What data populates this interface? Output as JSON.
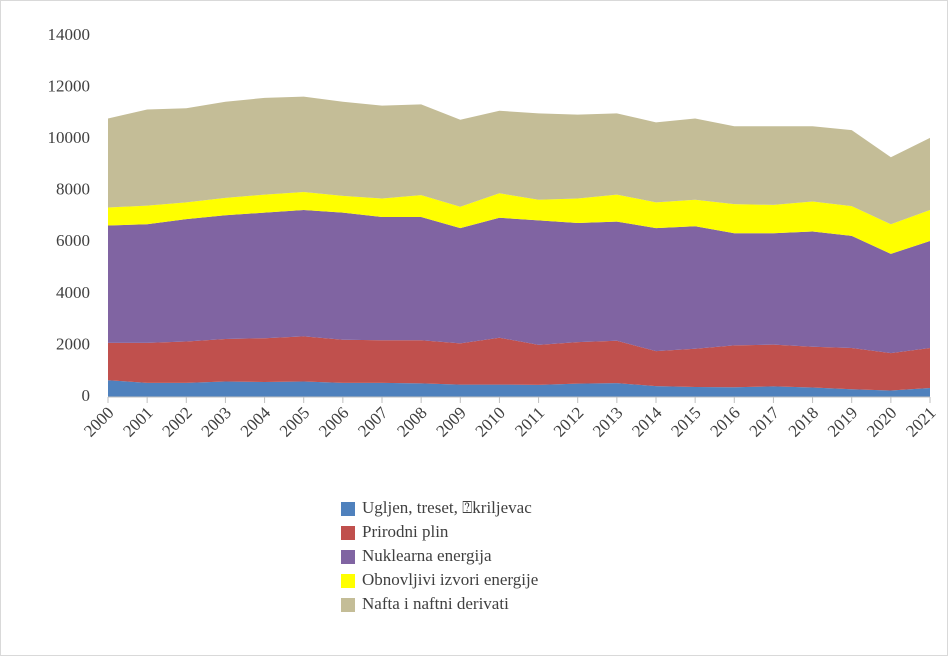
{
  "chart_data": {
    "type": "stacked_area",
    "categories": [
      "2000",
      "2001",
      "2002",
      "2003",
      "2004",
      "2005",
      "2006",
      "2007",
      "2008",
      "2009",
      "2010",
      "2011",
      "2012",
      "2013",
      "2014",
      "2015",
      "2016",
      "2017",
      "2018",
      "2019",
      "2020",
      "2021"
    ],
    "series": [
      {
        "name": "Ugljen, treset, ⍰kriljevac",
        "color": "#4f81bd",
        "values": [
          650,
          550,
          550,
          600,
          580,
          600,
          550,
          550,
          530,
          480,
          480,
          470,
          520,
          540,
          420,
          390,
          380,
          410,
          370,
          300,
          250,
          350
        ]
      },
      {
        "name": "Prirodni plin",
        "color": "#c0504d",
        "values": [
          1450,
          1550,
          1600,
          1650,
          1700,
          1750,
          1670,
          1650,
          1670,
          1600,
          1820,
          1550,
          1610,
          1640,
          1360,
          1480,
          1620,
          1620,
          1580,
          1600,
          1450,
          1550
        ]
      },
      {
        "name": "Nuklearna energija",
        "color": "#8064a2",
        "values": [
          4550,
          4600,
          4750,
          4800,
          4870,
          4900,
          4930,
          4780,
          4780,
          4470,
          4650,
          4830,
          4620,
          4620,
          4770,
          4750,
          4350,
          4320,
          4470,
          4350,
          3850,
          4150
        ]
      },
      {
        "name": "Obnovljivi izvori energije",
        "color": "#ffff00",
        "values": [
          700,
          720,
          650,
          670,
          700,
          700,
          650,
          720,
          850,
          830,
          950,
          800,
          950,
          1050,
          1000,
          1030,
          1130,
          1100,
          1160,
          1150,
          1150,
          1200
        ]
      },
      {
        "name": "Nafta i naftni derivati",
        "color": "#c4bd97",
        "values": [
          3450,
          3730,
          3650,
          3730,
          3750,
          3700,
          3650,
          3600,
          3520,
          3370,
          3200,
          3350,
          3250,
          3150,
          3100,
          3150,
          3020,
          3050,
          2920,
          2950,
          2600,
          2800
        ]
      }
    ],
    "ylim": [
      0,
      14000
    ],
    "yticks": [
      0,
      2000,
      4000,
      6000,
      8000,
      10000,
      12000,
      14000
    ],
    "grid": false,
    "legend": "bottom"
  }
}
